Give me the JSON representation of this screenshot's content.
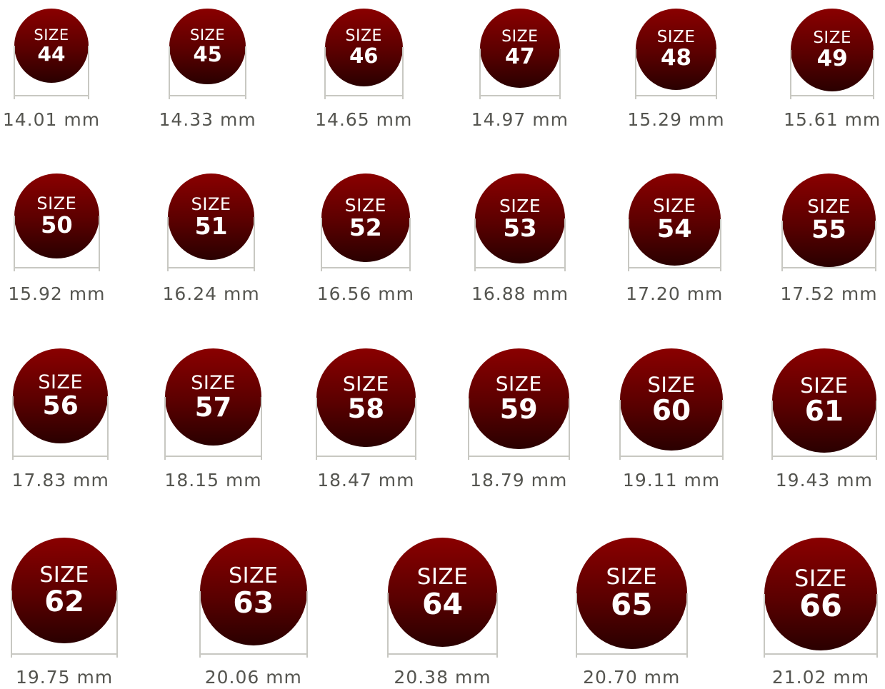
{
  "colors": {
    "disc_top": "#8a0000",
    "disc_bottom": "#2a0000",
    "guide": "#c8c8c2",
    "label": "#555550"
  },
  "size_word": "SIZE",
  "unit": "mm",
  "sizes": [
    {
      "size": "44",
      "diameter": "14.01",
      "label": "14.01 mm"
    },
    {
      "size": "45",
      "diameter": "14.33",
      "label": "14.33 mm"
    },
    {
      "size": "46",
      "diameter": "14.65",
      "label": "14.65 mm"
    },
    {
      "size": "47",
      "diameter": "14.97",
      "label": "14.97 mm"
    },
    {
      "size": "48",
      "diameter": "15.29",
      "label": "15.29 mm"
    },
    {
      "size": "49",
      "diameter": "15.61",
      "label": "15.61 mm"
    },
    {
      "size": "50",
      "diameter": "15.92",
      "label": "15.92 mm"
    },
    {
      "size": "51",
      "diameter": "16.24",
      "label": "16.24 mm"
    },
    {
      "size": "52",
      "diameter": "16.56",
      "label": "16.56 mm"
    },
    {
      "size": "53",
      "diameter": "16.88",
      "label": "16.88 mm"
    },
    {
      "size": "54",
      "diameter": "17.20",
      "label": "17.20 mm"
    },
    {
      "size": "55",
      "diameter": "17.52",
      "label": "17.52 mm"
    },
    {
      "size": "56",
      "diameter": "17.83",
      "label": "17.83 mm"
    },
    {
      "size": "57",
      "diameter": "18.15",
      "label": "18.15 mm"
    },
    {
      "size": "58",
      "diameter": "18.47",
      "label": "18.47 mm"
    },
    {
      "size": "59",
      "diameter": "18.79",
      "label": "18.79 mm"
    },
    {
      "size": "60",
      "diameter": "19.11",
      "label": "19.11 mm"
    },
    {
      "size": "61",
      "diameter": "19.43",
      "label": "19.43 mm"
    },
    {
      "size": "62",
      "diameter": "19.75",
      "label": "19.75 mm"
    },
    {
      "size": "63",
      "diameter": "20.06",
      "label": "20.06 mm"
    },
    {
      "size": "64",
      "diameter": "20.38",
      "label": "20.38 mm"
    },
    {
      "size": "65",
      "diameter": "20.70",
      "label": "20.70 mm"
    },
    {
      "size": "66",
      "diameter": "21.02",
      "label": "21.02 mm"
    }
  ]
}
